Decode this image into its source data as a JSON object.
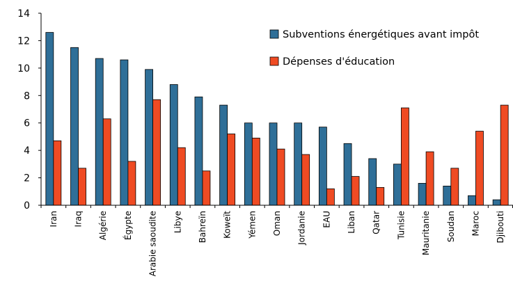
{
  "chart_data": {
    "type": "bar",
    "title": "",
    "xlabel": "",
    "ylabel": "",
    "ylim": [
      0,
      14
    ],
    "yticks": [
      0,
      2,
      4,
      6,
      8,
      10,
      12,
      14
    ],
    "grid": false,
    "legend_position": "top-right",
    "categories": [
      "Iran",
      "Iraq",
      "Algérie",
      "Égypte",
      "Arabie saoudite",
      "Libye",
      "Bahreïn",
      "Koweït",
      "Yémen",
      "Oman",
      "Jordanie",
      "EAU",
      "Liban",
      "Qatar",
      "Tunisie",
      "Mauritanie",
      "Soudan",
      "Maroc",
      "Djibouti"
    ],
    "series": [
      {
        "name": "Subventions énergétiques avant impôt",
        "color": "#2f6f98",
        "values": [
          12.6,
          11.5,
          10.7,
          10.6,
          9.9,
          8.8,
          7.9,
          7.3,
          6.0,
          6.0,
          6.0,
          5.7,
          4.5,
          3.4,
          3.0,
          1.6,
          1.4,
          0.7,
          0.4
        ]
      },
      {
        "name": "Dépenses d'éducation",
        "color": "#ef4b23",
        "values": [
          4.7,
          2.7,
          6.3,
          3.2,
          7.7,
          4.2,
          2.5,
          5.2,
          4.9,
          4.1,
          3.7,
          1.2,
          2.1,
          1.3,
          7.1,
          3.9,
          2.7,
          5.4,
          7.3
        ]
      }
    ]
  }
}
